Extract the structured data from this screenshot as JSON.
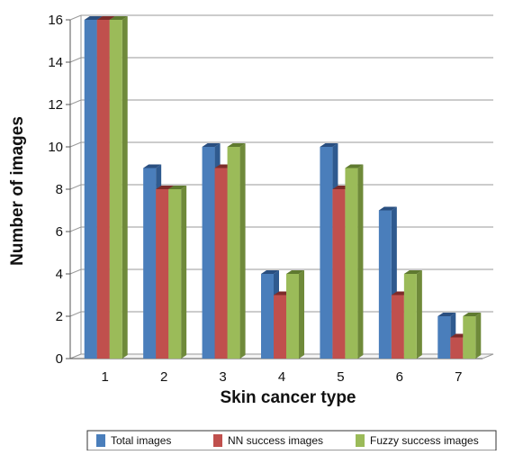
{
  "chart_data": {
    "type": "bar",
    "style": "3d-clustered",
    "title": "",
    "xlabel": "Skin cancer type",
    "ylabel": "Number of images",
    "categories": [
      "1",
      "2",
      "3",
      "4",
      "5",
      "6",
      "7"
    ],
    "y_ticks": [
      "0",
      "2",
      "4",
      "6",
      "8",
      "10",
      "12",
      "14",
      "16"
    ],
    "ylim": [
      0,
      16
    ],
    "grid": true,
    "legend_position": "bottom",
    "series": [
      {
        "name": "Total images",
        "values": [
          16,
          9,
          10,
          4,
          10,
          7,
          2
        ],
        "color": "#4a7ebb",
        "side_color": "#2f5a8f",
        "top_color": "#2a4f80"
      },
      {
        "name": "NN success images",
        "values": [
          16,
          8,
          9,
          3,
          8,
          3,
          1
        ],
        "color": "#c0504d",
        "side_color": "#8f3533",
        "top_color": "#7d2c2a"
      },
      {
        "name": "Fuzzy success images",
        "values": [
          16,
          8,
          10,
          4,
          9,
          4,
          2
        ],
        "color": "#9bbb59",
        "side_color": "#6f8a3a",
        "top_color": "#5f7a30"
      }
    ]
  }
}
